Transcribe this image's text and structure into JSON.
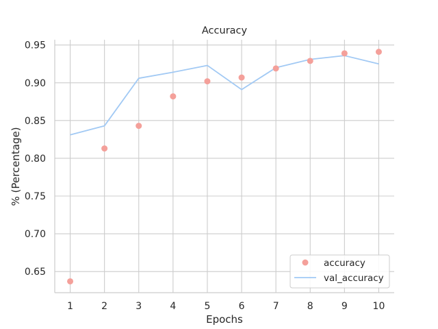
{
  "chart_data": {
    "type": "line",
    "title": "Accuracy",
    "xlabel": "Epochs",
    "ylabel": "% (Percentage)",
    "x": [
      1,
      2,
      3,
      4,
      5,
      6,
      7,
      8,
      9,
      10
    ],
    "x_ticks": [
      "1",
      "2",
      "3",
      "4",
      "5",
      "6",
      "7",
      "8",
      "9",
      "10"
    ],
    "y_ticks": [
      "0.65",
      "0.70",
      "0.75",
      "0.80",
      "0.85",
      "0.90",
      "0.95"
    ],
    "xlim": [
      0.55,
      10.45
    ],
    "ylim": [
      0.622,
      0.957
    ],
    "grid": true,
    "legend_position": "lower-right",
    "series": [
      {
        "name": "accuracy",
        "style": "markers",
        "color": "#f4a09a",
        "values": [
          0.637,
          0.813,
          0.843,
          0.882,
          0.902,
          0.907,
          0.919,
          0.929,
          0.939,
          0.941
        ]
      },
      {
        "name": "val_accuracy",
        "style": "line",
        "color": "#a1c9f4",
        "values": [
          0.831,
          0.843,
          0.906,
          0.914,
          0.923,
          0.891,
          0.92,
          0.931,
          0.936,
          0.925
        ]
      }
    ]
  }
}
